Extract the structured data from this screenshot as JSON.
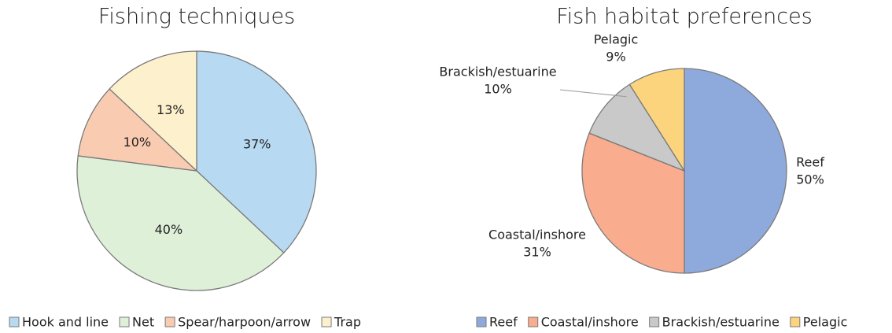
{
  "chart_data": [
    {
      "type": "pie",
      "title": "Fishing techniques",
      "categories": [
        "Hook and line",
        "Net",
        "Spear/harpoon/arrow",
        "Trap"
      ],
      "values": [
        37,
        40,
        10,
        13
      ],
      "value_labels": [
        "37%",
        "40%",
        "10%",
        "13%"
      ],
      "colors": [
        "#b8d9f2",
        "#dff0d9",
        "#f9cbb1",
        "#fdf1cd"
      ]
    },
    {
      "type": "pie",
      "title": "Fish habitat preferences",
      "categories": [
        "Reef",
        "Coastal/inshore",
        "Brackish/estuarine",
        "Pelagic"
      ],
      "values": [
        50,
        31,
        10,
        9
      ],
      "value_labels": [
        "50%",
        "31%",
        "10%",
        "9%"
      ],
      "colors": [
        "#8eaadc",
        "#f9ac8e",
        "#c9c9c9",
        "#fdd47e"
      ]
    }
  ]
}
